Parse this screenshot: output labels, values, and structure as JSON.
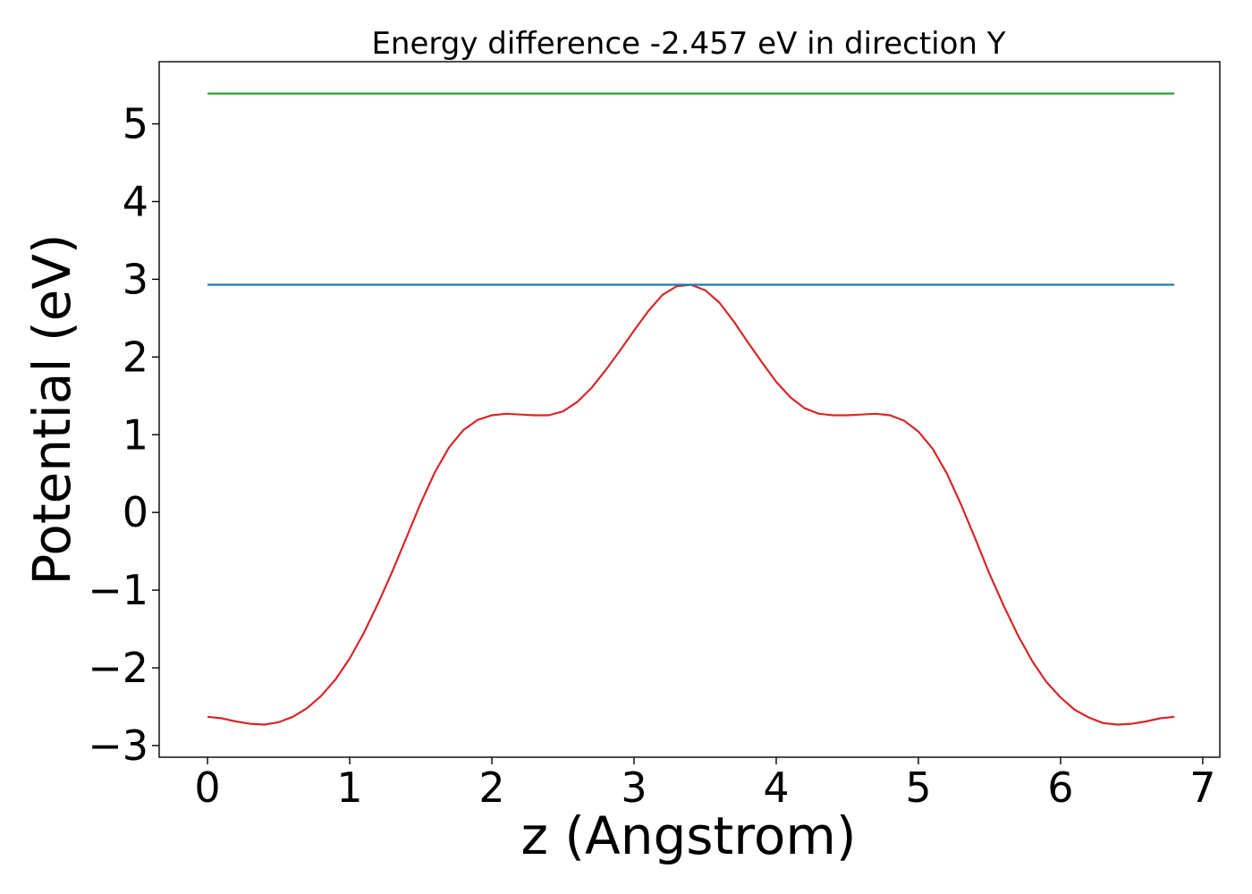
{
  "chart_data": {
    "type": "line",
    "title": "Energy difference -2.457 eV in direction Y",
    "xlabel": "z (Angstrom)",
    "ylabel": "Potential (eV)",
    "xlim": [
      -0.34,
      7.12
    ],
    "ylim": [
      -3.15,
      5.8
    ],
    "xticks": [
      0,
      1,
      2,
      3,
      4,
      5,
      6,
      7
    ],
    "xtick_labels": [
      "0",
      "1",
      "2",
      "3",
      "4",
      "5",
      "6",
      "7"
    ],
    "yticks": [
      -3,
      -2,
      -1,
      0,
      1,
      2,
      3,
      4,
      5
    ],
    "ytick_labels": [
      "−3",
      "−2",
      "−1",
      "0",
      "1",
      "2",
      "3",
      "4",
      "5"
    ],
    "grid": false,
    "series": [
      {
        "color": "#d62728",
        "x": [
          0,
          0.1,
          0.2,
          0.3,
          0.4,
          0.5,
          0.6,
          0.7,
          0.8,
          0.9,
          1.0,
          1.1,
          1.2,
          1.3,
          1.4,
          1.5,
          1.6,
          1.7,
          1.8,
          1.9,
          2.0,
          2.1,
          2.2,
          2.3,
          2.4,
          2.5,
          2.6,
          2.7,
          2.8,
          2.9,
          3.0,
          3.1,
          3.2,
          3.3,
          3.4,
          3.5,
          3.6,
          3.7,
          3.8,
          3.9,
          4.0,
          4.1,
          4.2,
          4.3,
          4.4,
          4.5,
          4.6,
          4.7,
          4.8,
          4.9,
          5.0,
          5.1,
          5.2,
          5.3,
          5.4,
          5.5,
          5.6,
          5.7,
          5.8,
          5.9,
          6.0,
          6.1,
          6.2,
          6.3,
          6.4,
          6.5,
          6.6,
          6.7,
          6.8
        ],
        "y": [
          -2.63,
          -2.65,
          -2.69,
          -2.72,
          -2.73,
          -2.7,
          -2.63,
          -2.52,
          -2.36,
          -2.15,
          -1.88,
          -1.55,
          -1.17,
          -0.76,
          -0.32,
          0.12,
          0.52,
          0.84,
          1.06,
          1.19,
          1.25,
          1.27,
          1.26,
          1.25,
          1.25,
          1.3,
          1.42,
          1.6,
          1.83,
          2.08,
          2.34,
          2.59,
          2.8,
          2.91,
          2.93,
          2.86,
          2.7,
          2.46,
          2.19,
          1.93,
          1.68,
          1.48,
          1.34,
          1.27,
          1.25,
          1.25,
          1.26,
          1.27,
          1.25,
          1.18,
          1.04,
          0.82,
          0.5,
          0.1,
          -0.34,
          -0.79,
          -1.2,
          -1.58,
          -1.91,
          -2.18,
          -2.38,
          -2.54,
          -2.64,
          -2.71,
          -2.73,
          -2.72,
          -2.69,
          -2.65,
          -2.63
        ]
      },
      {
        "color": "#1f77b4",
        "x": [
          0,
          6.8
        ],
        "y": [
          2.93,
          2.93
        ]
      },
      {
        "color": "#2ca02c",
        "x": [
          0,
          6.8
        ],
        "y": [
          5.39,
          5.39
        ]
      }
    ]
  }
}
